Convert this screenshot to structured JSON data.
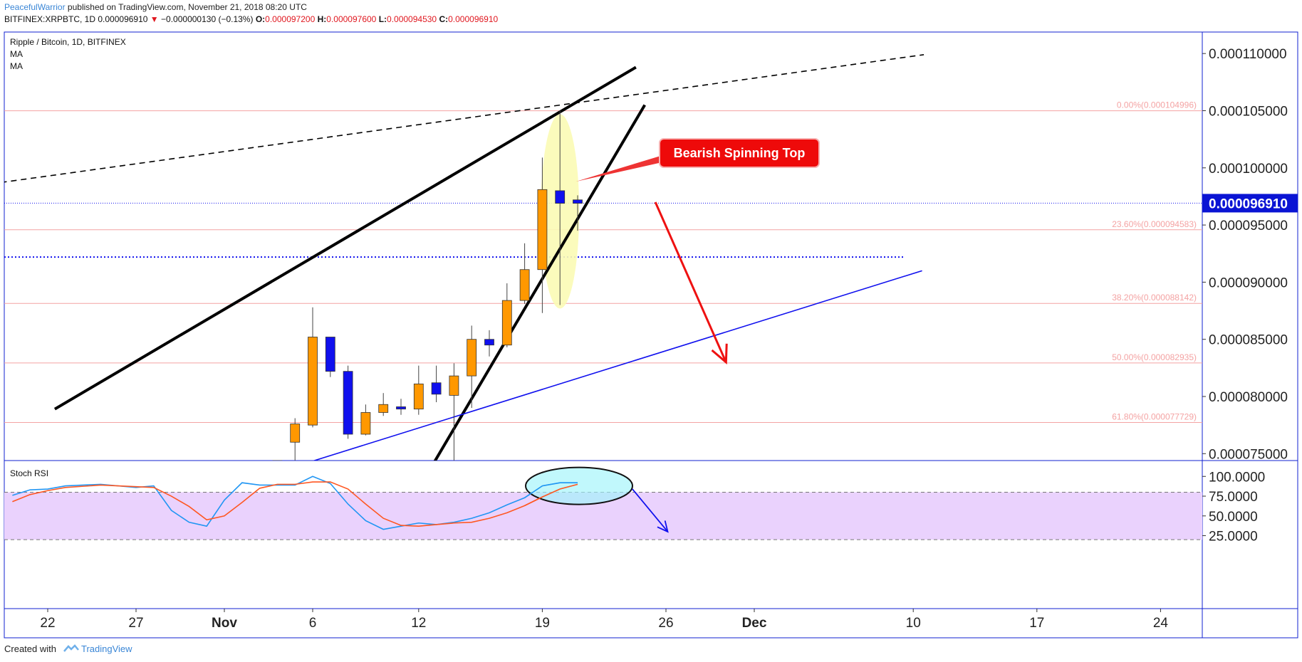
{
  "header": {
    "author": "PeacefulWarrior",
    "published_text": " published on TradingView.com, November 21, 2018 08:20 UTC",
    "symbol": "BITFINEX:XRPBTC, 1D",
    "last": "0.000096910",
    "change_arrow": "▼",
    "change": "−0.000000130 (−0.13%)",
    "o_label": "O:",
    "o": "0.000097200",
    "h_label": "H:",
    "h": "0.000097600",
    "l_label": "L:",
    "l": "0.000094530",
    "c_label": "C:",
    "c": "0.000096910"
  },
  "legend": {
    "title": "Ripple / Bitcoin, 1D, BITFINEX",
    "ma1": "MA",
    "ma2": "MA"
  },
  "indicator": {
    "title": "Stoch RSI"
  },
  "annotation": {
    "callout": "Bearish Spinning Top"
  },
  "footer": {
    "created_with": "Created with",
    "brand": "TradingView"
  },
  "colors": {
    "up": "#ff9800",
    "down": "#1010ee",
    "fib_line": "#f4a3a3",
    "callout_bg": "#ee0a0a",
    "rsi_band": "#ead2fd",
    "stoch_k": "#2196f3",
    "stoch_d": "#ff5722",
    "axis_border": "#1020d0"
  },
  "chart_data": [
    {
      "type": "candlestick",
      "title": "Ripple / Bitcoin, 1D, BITFINEX",
      "y_tick_labels": [
        "0.000110000",
        "0.000105000",
        "0.000100000",
        "0.000095000",
        "0.000090000",
        "0.000085000",
        "0.000080000",
        "0.000075000"
      ],
      "ylim": [
        7.43e-05,
        0.0001151
      ],
      "current_price": {
        "label": "0.000096910",
        "value": 9.691e-05
      },
      "x_tick_labels": [
        "22",
        "27",
        "Nov",
        "6",
        "12",
        "19",
        "26",
        "Dec",
        "10",
        "17",
        "24"
      ],
      "x_tick_days": [
        -10,
        -5,
        0,
        5,
        11,
        18,
        25,
        30,
        39,
        46,
        53
      ],
      "candles": [
        {
          "day": 3,
          "open": 7.35e-05,
          "high": 7.44e-05,
          "low": 7.28e-05,
          "close": 7.44e-05
        },
        {
          "day": 4,
          "open": 7.6e-05,
          "high": 7.81e-05,
          "low": 7.4e-05,
          "close": 7.76e-05
        },
        {
          "day": 5,
          "open": 7.75e-05,
          "high": 8.78e-05,
          "low": 7.73e-05,
          "close": 8.52e-05
        },
        {
          "day": 6,
          "open": 8.52e-05,
          "high": 8.52e-05,
          "low": 8.17e-05,
          "close": 8.22e-05
        },
        {
          "day": 7,
          "open": 8.22e-05,
          "high": 8.27e-05,
          "low": 7.63e-05,
          "close": 7.67e-05
        },
        {
          "day": 8,
          "open": 7.67e-05,
          "high": 7.93e-05,
          "low": 7.66e-05,
          "close": 7.86e-05
        },
        {
          "day": 9,
          "open": 7.86e-05,
          "high": 8.03e-05,
          "low": 7.83e-05,
          "close": 7.93e-05
        },
        {
          "day": 10,
          "open": 7.91e-05,
          "high": 7.98e-05,
          "low": 7.84e-05,
          "close": 7.89e-05
        },
        {
          "day": 11,
          "open": 7.89e-05,
          "high": 8.27e-05,
          "low": 7.84e-05,
          "close": 8.11e-05
        },
        {
          "day": 12,
          "open": 8.12e-05,
          "high": 8.27e-05,
          "low": 7.95e-05,
          "close": 8.02e-05
        },
        {
          "day": 13,
          "open": 8.01e-05,
          "high": 8.29e-05,
          "low": 7.43e-05,
          "close": 8.18e-05
        },
        {
          "day": 14,
          "open": 8.18e-05,
          "high": 8.62e-05,
          "low": 7.9e-05,
          "close": 8.5e-05
        },
        {
          "day": 15,
          "open": 8.5e-05,
          "high": 8.58e-05,
          "low": 8.35e-05,
          "close": 8.45e-05
        },
        {
          "day": 16,
          "open": 8.45e-05,
          "high": 8.99e-05,
          "low": 8.43e-05,
          "close": 8.84e-05
        },
        {
          "day": 17,
          "open": 8.84e-05,
          "high": 9.34e-05,
          "low": 8.81e-05,
          "close": 9.11e-05
        },
        {
          "day": 18,
          "open": 9.11e-05,
          "high": 0.0001009,
          "low": 8.73e-05,
          "close": 9.81e-05
        },
        {
          "day": 19,
          "open": 9.8e-05,
          "high": 0.000105,
          "low": 8.8e-05,
          "close": 9.69e-05
        },
        {
          "day": 20,
          "open": 9.72e-05,
          "high": 9.76e-05,
          "low": 9.45e-05,
          "close": 9.69e-05
        }
      ],
      "fibonacci_levels": [
        {
          "label": "0.00%(0.000104996)",
          "value": 0.000104996
        },
        {
          "label": "23.60%(0.000094583)",
          "value": 9.4583e-05
        },
        {
          "label": "38.20%(0.000088142)",
          "value": 8.8142e-05
        },
        {
          "label": "50.00%(0.000082935)",
          "value": 8.2935e-05
        },
        {
          "label": "61.80%(0.000077729)",
          "value": 7.7729e-05
        }
      ],
      "horizontal_dotted_line": 9.22e-05,
      "drawn_lines": [
        {
          "style": "dashed",
          "color": "#000000",
          "from": [
            -13.2,
            9.86e-05
          ],
          "to": [
            39.6,
            0.0001099
          ]
        },
        {
          "style": "solid",
          "color": "#000000",
          "from": [
            -9.6,
            7.89e-05
          ],
          "to": [
            23.3,
            0.0001088
          ]
        },
        {
          "style": "solid",
          "color": "#000000",
          "from": [
            11.9,
            7.43e-05
          ],
          "to": [
            23.8,
            0.0001055
          ]
        },
        {
          "style": "solid",
          "color": "#1010ee",
          "from": [
            4.9,
            7.43e-05
          ],
          "to": [
            39.5,
            9.1e-05
          ]
        },
        {
          "style": "arrow",
          "color": "#ee1111",
          "from": [
            24.4,
            9.7e-05
          ],
          "to": [
            28.4,
            8.3e-05
          ]
        }
      ]
    },
    {
      "type": "line",
      "title": "Stoch RSI",
      "y_tick_labels": [
        "100.0000",
        "75.0000",
        "50.0000",
        "25.0000"
      ],
      "ylim": [
        7,
        107
      ],
      "band": [
        20,
        80
      ],
      "series": [
        {
          "color": "#2196f3",
          "points": [
            [
              -12,
              76
            ],
            [
              -11,
              83
            ],
            [
              -10,
              84
            ],
            [
              -9,
              88
            ],
            [
              -7,
              90
            ],
            [
              -5,
              86
            ],
            [
              -4,
              88
            ],
            [
              -3,
              57
            ],
            [
              -2,
              42
            ],
            [
              -1,
              37
            ],
            [
              0,
              70
            ],
            [
              1,
              92
            ],
            [
              2,
              89
            ],
            [
              3,
              89
            ],
            [
              4,
              89
            ],
            [
              5,
              100
            ],
            [
              6,
              91
            ],
            [
              7,
              65
            ],
            [
              8,
              44
            ],
            [
              9,
              33
            ],
            [
              10,
              37
            ],
            [
              11,
              41
            ],
            [
              12,
              39
            ],
            [
              13,
              42
            ],
            [
              14,
              47
            ],
            [
              15,
              54
            ],
            [
              16,
              64
            ],
            [
              17,
              73
            ],
            [
              18,
              88
            ],
            [
              19,
              92
            ],
            [
              20,
              92
            ]
          ]
        },
        {
          "color": "#ff5722",
          "points": [
            [
              -12,
              68
            ],
            [
              -11,
              77
            ],
            [
              -10,
              82
            ],
            [
              -9,
              86
            ],
            [
              -7,
              89
            ],
            [
              -5,
              87
            ],
            [
              -4,
              86
            ],
            [
              -3,
              75
            ],
            [
              -2,
              62
            ],
            [
              -1,
              45
            ],
            [
              0,
              50
            ],
            [
              1,
              67
            ],
            [
              2,
              85
            ],
            [
              3,
              90
            ],
            [
              4,
              90
            ],
            [
              5,
              93
            ],
            [
              6,
              93
            ],
            [
              7,
              84
            ],
            [
              8,
              65
            ],
            [
              9,
              47
            ],
            [
              10,
              38
            ],
            [
              11,
              37
            ],
            [
              12,
              39
            ],
            [
              13,
              41
            ],
            [
              14,
              42
            ],
            [
              15,
              47
            ],
            [
              16,
              54
            ],
            [
              17,
              63
            ],
            [
              18,
              74
            ],
            [
              19,
              84
            ],
            [
              20,
              90
            ]
          ]
        }
      ],
      "drawn_arrow": {
        "color": "#1010ee",
        "from": [
          23.1,
          84
        ],
        "to": [
          25.1,
          30
        ]
      }
    }
  ]
}
